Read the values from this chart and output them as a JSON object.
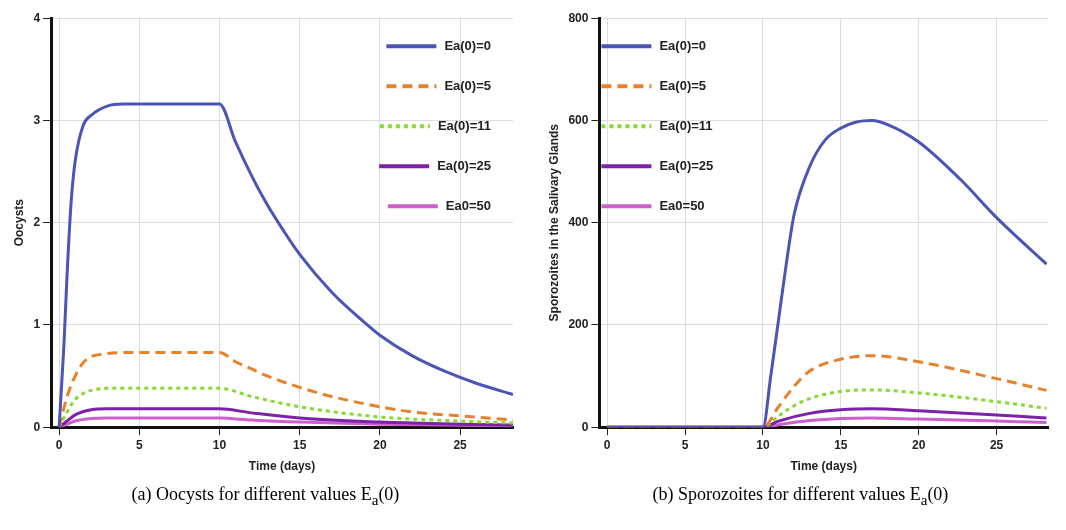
{
  "chart_data": [
    {
      "type": "line",
      "xlabel": "Time (days)",
      "ylabel": "Oocysts",
      "xlim": [
        -0.5,
        28.3
      ],
      "ylim": [
        0,
        4
      ],
      "xticks": [
        0,
        5,
        10,
        15,
        20,
        25
      ],
      "yticks": [
        0,
        1,
        2,
        3,
        4
      ],
      "grid": true,
      "legend": "top right",
      "annotations": [
        "(a) Oocysts for different values E$_{a}$(0)"
      ],
      "series": [
        {
          "name": "Ea(0)=0",
          "color": "#4a55b5",
          "line_style": "solid",
          "x": [
            0,
            0.3,
            0.5,
            0.75,
            1,
            1.5,
            2,
            3,
            4,
            10,
            11,
            12,
            13,
            14,
            15,
            17,
            19,
            20,
            22,
            24,
            26,
            28.3
          ],
          "values": [
            0,
            0.8,
            1.5,
            2.2,
            2.6,
            2.95,
            3.05,
            3.14,
            3.16,
            3.16,
            2.79,
            2.46,
            2.17,
            1.92,
            1.69,
            1.32,
            1.03,
            0.9,
            0.7,
            0.55,
            0.43,
            0.32
          ]
        },
        {
          "name": "Ea(0)=5",
          "color": "#e8822a",
          "line_style": "dashed",
          "x": [
            0,
            0.5,
            1,
            1.5,
            2,
            3,
            4,
            10,
            11,
            12,
            13,
            15,
            17,
            20,
            22,
            25,
            28.3
          ],
          "values": [
            0,
            0.3,
            0.5,
            0.63,
            0.69,
            0.72,
            0.73,
            0.73,
            0.64,
            0.57,
            0.5,
            0.39,
            0.3,
            0.2,
            0.15,
            0.11,
            0.07
          ]
        },
        {
          "name": "Ea(0)=11",
          "color": "#86d92f",
          "line_style": "dotted",
          "x": [
            0,
            0.5,
            1,
            1.5,
            2,
            3,
            10,
            12,
            15,
            20,
            25,
            28.3
          ],
          "values": [
            0,
            0.15,
            0.27,
            0.33,
            0.36,
            0.38,
            0.38,
            0.3,
            0.2,
            0.1,
            0.06,
            0.04
          ]
        },
        {
          "name": "Ea(0)=25",
          "color": "#7b22a8",
          "line_style": "solid",
          "x": [
            0,
            0.5,
            1,
            2,
            3,
            10,
            12,
            15,
            20,
            25,
            28.3
          ],
          "values": [
            0,
            0.06,
            0.12,
            0.17,
            0.18,
            0.18,
            0.14,
            0.09,
            0.05,
            0.03,
            0.02
          ]
        },
        {
          "name": "Ea0=50",
          "color": "#cc5fcc",
          "line_style": "solid",
          "x": [
            0,
            0.5,
            1,
            2,
            3,
            10,
            12,
            15,
            20,
            25,
            28.3
          ],
          "values": [
            0,
            0.03,
            0.06,
            0.085,
            0.09,
            0.09,
            0.07,
            0.05,
            0.03,
            0.02,
            0.01
          ]
        }
      ]
    },
    {
      "type": "line",
      "xlabel": "Time (days)",
      "ylabel": "Sporozoites in the Salivary Glands",
      "xlim": [
        -0.5,
        28.3
      ],
      "ylim": [
        0,
        800
      ],
      "xticks": [
        0,
        5,
        10,
        15,
        20,
        25
      ],
      "yticks": [
        0,
        200,
        400,
        600,
        800
      ],
      "grid": true,
      "legend": "top left",
      "annotations": [
        "(b) Sporozoites for different values E$_{a}$(0)"
      ],
      "series": [
        {
          "name": "Ea(0)=0",
          "color": "#4a55b5",
          "line_style": "solid",
          "x": [
            0,
            10,
            10.5,
            11,
            11.5,
            12,
            13,
            14,
            15,
            16,
            17,
            18,
            20,
            22.7,
            25,
            28.2
          ],
          "values": [
            0,
            0,
            100,
            210,
            320,
            416,
            510,
            562,
            585,
            597,
            600,
            592,
            558,
            484,
            410,
            319
          ]
        },
        {
          "name": "Ea(0)=5",
          "color": "#e8822a",
          "line_style": "dashed",
          "x": [
            0,
            10,
            11,
            12,
            13,
            15,
            17,
            20,
            25,
            28.2
          ],
          "values": [
            0,
            0,
            40,
            80,
            110,
            133,
            140,
            128,
            95,
            72
          ]
        },
        {
          "name": "Ea(0)=11",
          "color": "#86d92f",
          "line_style": "dotted",
          "x": [
            0,
            10,
            11,
            12,
            13,
            15,
            17,
            20,
            25,
            28.2
          ],
          "values": [
            0,
            0,
            22,
            42,
            56,
            70,
            73,
            67,
            50,
            37
          ]
        },
        {
          "name": "Ea(0)=25",
          "color": "#7b22a8",
          "line_style": "solid",
          "x": [
            0,
            10,
            11,
            13,
            15,
            17,
            20,
            25,
            28.2
          ],
          "values": [
            0,
            0,
            12,
            27,
            34,
            36,
            32,
            24,
            18
          ]
        },
        {
          "name": "Ea0=50",
          "color": "#cc5fcc",
          "line_style": "solid",
          "x": [
            0,
            10,
            11,
            13,
            15,
            17,
            20,
            25,
            28.2
          ],
          "values": [
            0,
            0,
            5,
            13,
            17,
            18,
            16,
            12,
            9
          ]
        }
      ]
    }
  ]
}
